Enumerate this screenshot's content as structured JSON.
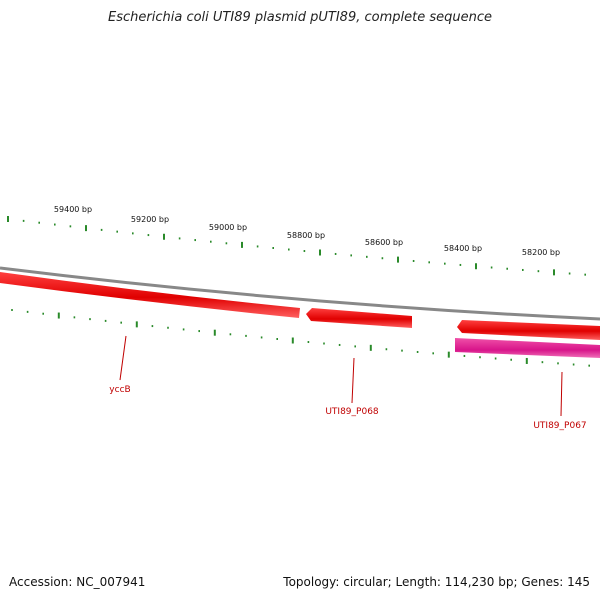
{
  "title": "Escherichia coli UTI89 plasmid pUTI89, complete sequence",
  "footer": {
    "accession": "Accession: NC_007941",
    "summary": "Topology: circular; Length: 114,230 bp; Genes: 145"
  },
  "ticks": [
    {
      "label": "59400 bp"
    },
    {
      "label": "59200 bp"
    },
    {
      "label": "59000 bp"
    },
    {
      "label": "58800 bp"
    },
    {
      "label": "58600 bp"
    },
    {
      "label": "58400 bp"
    },
    {
      "label": "58200 bp"
    }
  ],
  "genes": [
    {
      "name": "yccB",
      "color": "#e00000",
      "strand": "forward"
    },
    {
      "name": "UTI89_P068",
      "color": "#e00000",
      "strand": "reverse"
    },
    {
      "name": "UTI89_P067",
      "color": "#e00000",
      "strand": "reverse"
    }
  ],
  "features": [
    {
      "name": "",
      "color": "#e0208a",
      "type": "pink-feature"
    }
  ],
  "colors": {
    "backbone": "#888888",
    "ticks": "#2a8a2a",
    "gene": "#e00000",
    "gene_label": "#c00000",
    "pink_feature": "#e0208a"
  }
}
